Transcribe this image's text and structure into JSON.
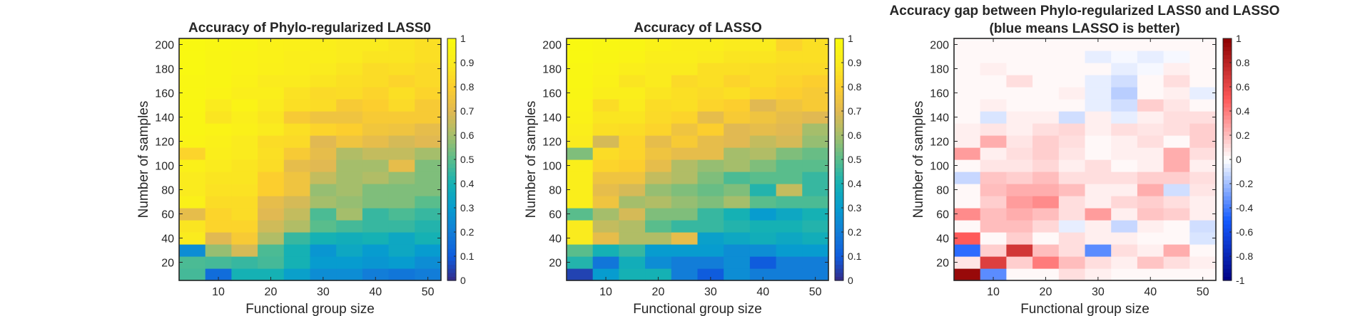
{
  "figure": {
    "panels": [
      {
        "title_lines": [
          "Accuracy of Phylo-regularized LASS0"
        ],
        "xlabel": "Functional group size",
        "ylabel": "Number of samples"
      },
      {
        "title_lines": [
          "Accuracy of LASSO"
        ],
        "xlabel": "Functional group size",
        "ylabel": "Number of samples"
      },
      {
        "title_lines": [
          "Accuracy gap between Phylo-regularized LASS0 and LASSO",
          "(blue means LASSO is better)"
        ],
        "xlabel": "Functional group size",
        "ylabel": "Number of samples"
      }
    ]
  },
  "chart_data": [
    {
      "type": "heatmap",
      "title": "Accuracy of Phylo-regularized LASS0",
      "xlabel": "Functional group size",
      "ylabel": "Number of samples",
      "colormap": "parula",
      "x_values": [
        5,
        10,
        15,
        20,
        25,
        30,
        35,
        40,
        45,
        50
      ],
      "y_values": [
        10,
        20,
        30,
        40,
        50,
        60,
        70,
        80,
        90,
        100,
        110,
        120,
        130,
        140,
        150,
        160,
        170,
        180,
        190,
        200
      ],
      "xlim": [
        2.5,
        52.5
      ],
      "ylim": [
        5,
        205
      ],
      "xticks": [
        10,
        20,
        30,
        40,
        50
      ],
      "yticks": [
        20,
        40,
        60,
        80,
        100,
        120,
        140,
        160,
        180,
        200
      ],
      "clim": [
        0,
        1
      ],
      "colorbar_ticks": [
        "0",
        "0.1",
        "0.2",
        "0.3",
        "0.4",
        "0.5",
        "0.6",
        "0.7",
        "0.8",
        "0.9",
        "1"
      ],
      "z": [
        [
          0.47,
          0.15,
          0.4,
          0.4,
          0.32,
          0.25,
          0.25,
          0.2,
          0.18,
          0.2
        ],
        [
          0.48,
          0.47,
          0.45,
          0.47,
          0.4,
          0.3,
          0.3,
          0.28,
          0.3,
          0.25
        ],
        [
          0.25,
          0.58,
          0.68,
          0.48,
          0.4,
          0.28,
          0.35,
          0.3,
          0.35,
          0.3
        ],
        [
          0.9,
          0.7,
          0.78,
          0.62,
          0.45,
          0.4,
          0.38,
          0.4,
          0.35,
          0.4
        ],
        [
          0.88,
          0.82,
          0.82,
          0.67,
          0.62,
          0.5,
          0.47,
          0.45,
          0.45,
          0.42
        ],
        [
          0.72,
          0.82,
          0.85,
          0.7,
          0.65,
          0.48,
          0.6,
          0.45,
          0.48,
          0.45
        ],
        [
          0.93,
          0.85,
          0.85,
          0.72,
          0.68,
          0.6,
          0.58,
          0.55,
          0.55,
          0.5
        ],
        [
          0.9,
          0.87,
          0.87,
          0.8,
          0.75,
          0.58,
          0.6,
          0.55,
          0.55,
          0.55
        ],
        [
          0.9,
          0.88,
          0.88,
          0.8,
          0.75,
          0.65,
          0.6,
          0.62,
          0.58,
          0.55
        ],
        [
          0.93,
          0.9,
          0.88,
          0.85,
          0.72,
          0.7,
          0.6,
          0.6,
          0.72,
          0.55
        ],
        [
          0.82,
          0.92,
          0.9,
          0.86,
          0.78,
          0.72,
          0.62,
          0.65,
          0.65,
          0.6
        ],
        [
          0.95,
          0.93,
          0.9,
          0.85,
          0.84,
          0.7,
          0.75,
          0.72,
          0.68,
          0.7
        ],
        [
          0.96,
          0.95,
          0.93,
          0.9,
          0.86,
          0.82,
          0.8,
          0.76,
          0.75,
          0.72
        ],
        [
          0.96,
          0.88,
          0.92,
          0.88,
          0.78,
          0.75,
          0.75,
          0.78,
          0.78,
          0.78
        ],
        [
          0.97,
          0.9,
          0.95,
          0.9,
          0.86,
          0.85,
          0.78,
          0.8,
          0.84,
          0.78
        ],
        [
          0.97,
          0.95,
          0.92,
          0.92,
          0.87,
          0.84,
          0.85,
          0.82,
          0.86,
          0.82
        ],
        [
          0.97,
          0.96,
          0.94,
          0.9,
          0.9,
          0.88,
          0.86,
          0.85,
          0.82,
          0.84
        ],
        [
          0.98,
          0.96,
          0.95,
          0.93,
          0.92,
          0.9,
          0.88,
          0.85,
          0.86,
          0.84
        ],
        [
          0.98,
          0.96,
          0.95,
          0.94,
          0.92,
          0.92,
          0.9,
          0.88,
          0.88,
          0.86
        ],
        [
          0.98,
          0.97,
          0.96,
          0.94,
          0.93,
          0.92,
          0.9,
          0.9,
          0.88,
          0.86
        ]
      ]
    },
    {
      "type": "heatmap",
      "title": "Accuracy of LASSO",
      "xlabel": "Functional group size",
      "ylabel": "Number of samples",
      "colormap": "parula",
      "x_values": [
        5,
        10,
        15,
        20,
        25,
        30,
        35,
        40,
        45,
        50
      ],
      "y_values": [
        10,
        20,
        30,
        40,
        50,
        60,
        70,
        80,
        90,
        100,
        110,
        120,
        130,
        140,
        150,
        160,
        170,
        180,
        190,
        200
      ],
      "xlim": [
        2.5,
        52.5
      ],
      "ylim": [
        5,
        205
      ],
      "xticks": [
        10,
        20,
        30,
        40,
        50
      ],
      "yticks": [
        20,
        40,
        60,
        80,
        100,
        120,
        140,
        160,
        180,
        200
      ],
      "clim": [
        0,
        1
      ],
      "colorbar_ticks": [
        "0",
        "0.1",
        "0.2",
        "0.3",
        "0.4",
        "0.5",
        "0.6",
        "0.7",
        "0.8",
        "0.9",
        "1"
      ],
      "z": [
        [
          0.05,
          0.3,
          0.4,
          0.4,
          0.2,
          0.1,
          0.25,
          0.2,
          0.2,
          0.2
        ],
        [
          0.42,
          0.18,
          0.38,
          0.25,
          0.2,
          0.2,
          0.25,
          0.1,
          0.2,
          0.2
        ],
        [
          0.5,
          0.4,
          0.45,
          0.3,
          0.3,
          0.3,
          0.25,
          0.25,
          0.3,
          0.3
        ],
        [
          0.9,
          0.72,
          0.62,
          0.62,
          0.72,
          0.32,
          0.35,
          0.38,
          0.35,
          0.38
        ],
        [
          0.9,
          0.65,
          0.62,
          0.5,
          0.45,
          0.45,
          0.42,
          0.4,
          0.4,
          0.42
        ],
        [
          0.5,
          0.6,
          0.68,
          0.55,
          0.55,
          0.45,
          0.4,
          0.3,
          0.35,
          0.4
        ],
        [
          0.92,
          0.75,
          0.6,
          0.62,
          0.58,
          0.55,
          0.6,
          0.5,
          0.48,
          0.48
        ],
        [
          0.92,
          0.72,
          0.68,
          0.58,
          0.55,
          0.52,
          0.55,
          0.42,
          0.65,
          0.45
        ],
        [
          0.92,
          0.75,
          0.75,
          0.65,
          0.62,
          0.55,
          0.48,
          0.5,
          0.5,
          0.45
        ],
        [
          0.92,
          0.82,
          0.8,
          0.72,
          0.62,
          0.58,
          0.6,
          0.55,
          0.5,
          0.5
        ],
        [
          0.55,
          0.85,
          0.82,
          0.75,
          0.72,
          0.72,
          0.6,
          0.62,
          0.55,
          0.52
        ],
        [
          0.9,
          0.68,
          0.82,
          0.72,
          0.78,
          0.72,
          0.7,
          0.65,
          0.68,
          0.58
        ],
        [
          0.92,
          0.86,
          0.85,
          0.82,
          0.75,
          0.8,
          0.7,
          0.72,
          0.7,
          0.6
        ],
        [
          0.94,
          0.88,
          0.88,
          0.84,
          0.82,
          0.72,
          0.78,
          0.75,
          0.72,
          0.7
        ],
        [
          0.95,
          0.85,
          0.9,
          0.85,
          0.86,
          0.82,
          0.8,
          0.7,
          0.75,
          0.78
        ],
        [
          0.96,
          0.92,
          0.92,
          0.88,
          0.86,
          0.84,
          0.86,
          0.82,
          0.8,
          0.78
        ],
        [
          0.97,
          0.94,
          0.88,
          0.9,
          0.84,
          0.86,
          0.82,
          0.85,
          0.82,
          0.8
        ],
        [
          0.97,
          0.95,
          0.92,
          0.9,
          0.9,
          0.86,
          0.86,
          0.85,
          0.84,
          0.84
        ],
        [
          0.98,
          0.96,
          0.95,
          0.92,
          0.92,
          0.9,
          0.88,
          0.88,
          0.86,
          0.86
        ],
        [
          0.98,
          0.97,
          0.96,
          0.94,
          0.92,
          0.92,
          0.9,
          0.9,
          0.82,
          0.86
        ]
      ]
    },
    {
      "type": "heatmap",
      "title": "Accuracy gap between Phylo-regularized LASS0 and LASSO (blue means LASSO is better)",
      "xlabel": "Functional group size",
      "ylabel": "Number of samples",
      "colormap": "blue-white-red",
      "x_values": [
        5,
        10,
        15,
        20,
        25,
        30,
        35,
        40,
        45,
        50
      ],
      "y_values": [
        10,
        20,
        30,
        40,
        50,
        60,
        70,
        80,
        90,
        100,
        110,
        120,
        130,
        140,
        150,
        160,
        170,
        180,
        190,
        200
      ],
      "xlim": [
        2.5,
        52.5
      ],
      "ylim": [
        5,
        205
      ],
      "xticks": [
        10,
        20,
        30,
        40,
        50
      ],
      "yticks": [
        20,
        40,
        60,
        80,
        100,
        120,
        140,
        160,
        180,
        200
      ],
      "clim": [
        -1,
        1
      ],
      "colorbar_ticks": [
        "1",
        "0.8",
        "0.6",
        "0.4",
        "0.2",
        "0",
        "-0.2",
        "-0.4",
        "-0.6",
        "-0.8",
        "-1"
      ],
      "z": [
        [
          0.95,
          -0.35,
          0.02,
          0.02,
          0.1,
          0.05,
          0.02,
          0.02,
          0.02,
          0.02
        ],
        [
          0.08,
          0.65,
          0.15,
          0.4,
          0.2,
          0.1,
          0.05,
          0.18,
          0.1,
          0.05
        ],
        [
          -0.45,
          0.15,
          0.7,
          0.2,
          0.1,
          -0.35,
          0.1,
          0.05,
          0.25,
          0.02
        ],
        [
          0.5,
          0.02,
          0.15,
          0.02,
          0.1,
          0.05,
          0.05,
          0.02,
          0.02,
          -0.08
        ],
        [
          0.02,
          0.2,
          0.2,
          0.12,
          -0.05,
          0.05,
          -0.12,
          0.05,
          0.02,
          -0.1
        ],
        [
          0.35,
          0.2,
          0.25,
          0.2,
          0.1,
          0.3,
          0.05,
          0.18,
          0.15,
          0.05
        ],
        [
          0.02,
          0.15,
          0.3,
          0.35,
          0.1,
          0.05,
          0.12,
          0.15,
          0.1,
          0.05
        ],
        [
          0.02,
          0.2,
          0.25,
          0.25,
          0.2,
          0.05,
          0.05,
          0.25,
          -0.1,
          0.08
        ],
        [
          -0.12,
          0.18,
          0.15,
          0.2,
          0.1,
          0.1,
          0.1,
          0.15,
          0.15,
          0.1
        ],
        [
          0.02,
          0.08,
          0.08,
          0.12,
          0.05,
          0.1,
          0.02,
          0.05,
          0.25,
          0.05
        ],
        [
          0.3,
          0.05,
          0.1,
          0.15,
          0.08,
          0.02,
          0.05,
          0.05,
          0.25,
          0.1
        ],
        [
          0.05,
          0.25,
          0.08,
          0.15,
          0.1,
          0.02,
          0.05,
          0.1,
          0.02,
          0.15
        ],
        [
          0.05,
          0.08,
          0.05,
          0.1,
          0.12,
          0.05,
          0.1,
          0.08,
          0.1,
          0.15
        ],
        [
          0.02,
          -0.08,
          0.05,
          0.05,
          -0.1,
          0.05,
          -0.05,
          0.05,
          0.1,
          0.1
        ],
        [
          0.02,
          0.05,
          0.02,
          0.02,
          0.02,
          -0.05,
          -0.1,
          0.15,
          0.08,
          0.02
        ],
        [
          0.02,
          0.02,
          0.02,
          0.02,
          0.05,
          -0.05,
          -0.15,
          0.02,
          0.05,
          -0.05
        ],
        [
          0.02,
          0.02,
          0.1,
          0.02,
          0.02,
          -0.05,
          -0.1,
          0.02,
          0.1,
          0.02
        ],
        [
          0.02,
          0.05,
          0.02,
          0.02,
          0.02,
          0.02,
          -0.05,
          -0.02,
          0.05,
          0.02
        ],
        [
          0.02,
          0.02,
          0.02,
          0.02,
          0.02,
          -0.05,
          -0.02,
          -0.05,
          -0.02,
          0.02
        ],
        [
          0.02,
          0.02,
          0.02,
          0.02,
          0.02,
          0.02,
          0.02,
          0.02,
          0.02,
          0.02
        ]
      ]
    }
  ]
}
